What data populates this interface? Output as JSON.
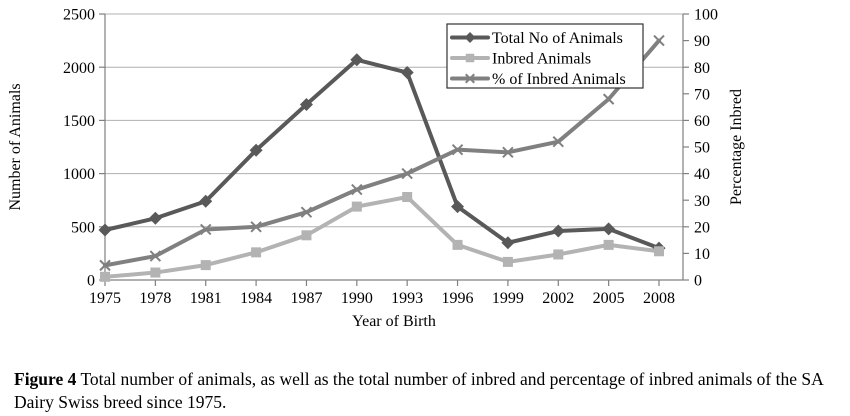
{
  "figure": {
    "caption_label": "Figure 4",
    "caption_text": "Total number of animals, as well as the total number of inbred and percentage of inbred animals of the SA Dairy Swiss breed since 1975."
  },
  "chart_data": {
    "type": "line",
    "x_categories": [
      "1975",
      "1978",
      "1981",
      "1984",
      "1987",
      "1990",
      "1993",
      "1996",
      "1999",
      "2002",
      "2005",
      "2008"
    ],
    "xlabel": "Year of Birth",
    "ylabel_left": "Number of Animals",
    "ylabel_right": "Percentage Inbred",
    "y_left": {
      "min": 0,
      "max": 2500,
      "tick_step": 500,
      "tick_labels": [
        "0",
        "500",
        "1000",
        "1500",
        "2000",
        "2500"
      ]
    },
    "y_right": {
      "min": 0,
      "max": 100,
      "tick_step": 10,
      "tick_labels": [
        "0",
        "10",
        "20",
        "30",
        "40",
        "50",
        "60",
        "70",
        "80",
        "90",
        "100"
      ]
    },
    "grid": true,
    "legend_position": "inside-top-right",
    "series": [
      {
        "name": "Total No of Animals",
        "axis": "left",
        "marker": "diamond",
        "color": "#595959",
        "values": [
          470,
          580,
          740,
          1220,
          1650,
          2070,
          1950,
          690,
          350,
          460,
          480,
          300
        ]
      },
      {
        "name": "Inbred Animals",
        "axis": "left",
        "marker": "square",
        "color": "#b3b3b3",
        "values": [
          30,
          70,
          140,
          260,
          420,
          690,
          780,
          330,
          170,
          240,
          330,
          270
        ]
      },
      {
        "name": "% of Inbred Animals",
        "axis": "right",
        "marker": "x",
        "color": "#808080",
        "values": [
          5.5,
          9,
          19,
          20,
          25.5,
          34,
          40,
          49,
          48,
          52,
          68,
          90
        ]
      }
    ]
  },
  "colors": {
    "grid": "#b0b0b0",
    "axis": "#808080",
    "legend_border": "#333333",
    "background": "#ffffff",
    "text": "#000000"
  }
}
